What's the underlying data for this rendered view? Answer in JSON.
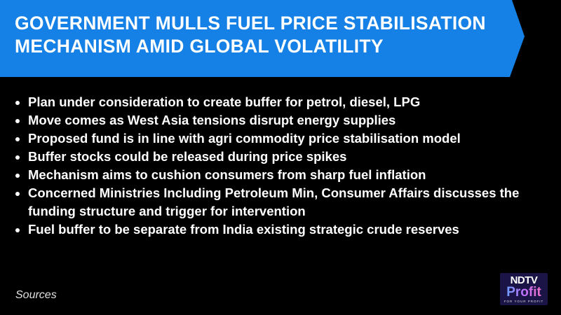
{
  "headline": {
    "line1": "Government mulls fuel price stabilisation",
    "line2": "mechanism amid global volatility"
  },
  "bullets": [
    "Plan under consideration to create buffer for petrol, diesel, LPG",
    "Move comes as West Asia tensions disrupt energy supplies",
    "Proposed fund is in line with agri commodity price stabilisation model",
    "Buffer stocks could be released during price spikes",
    "Mechanism aims to cushion consumers from sharp fuel inflation",
    "Concerned Ministries Including Petroleum Min, Consumer Affairs discusses the funding structure and trigger for intervention",
    "Fuel buffer to be separate from India existing strategic crude reserves"
  ],
  "footer": {
    "sources": "Sources"
  },
  "logo": {
    "line1": "NDTV",
    "line2": "Profit",
    "tagline": "FOR YOUR PROFIT"
  },
  "colors": {
    "banner": "#1580e6",
    "background": "#000000",
    "logo_bg": "#1a1447"
  }
}
